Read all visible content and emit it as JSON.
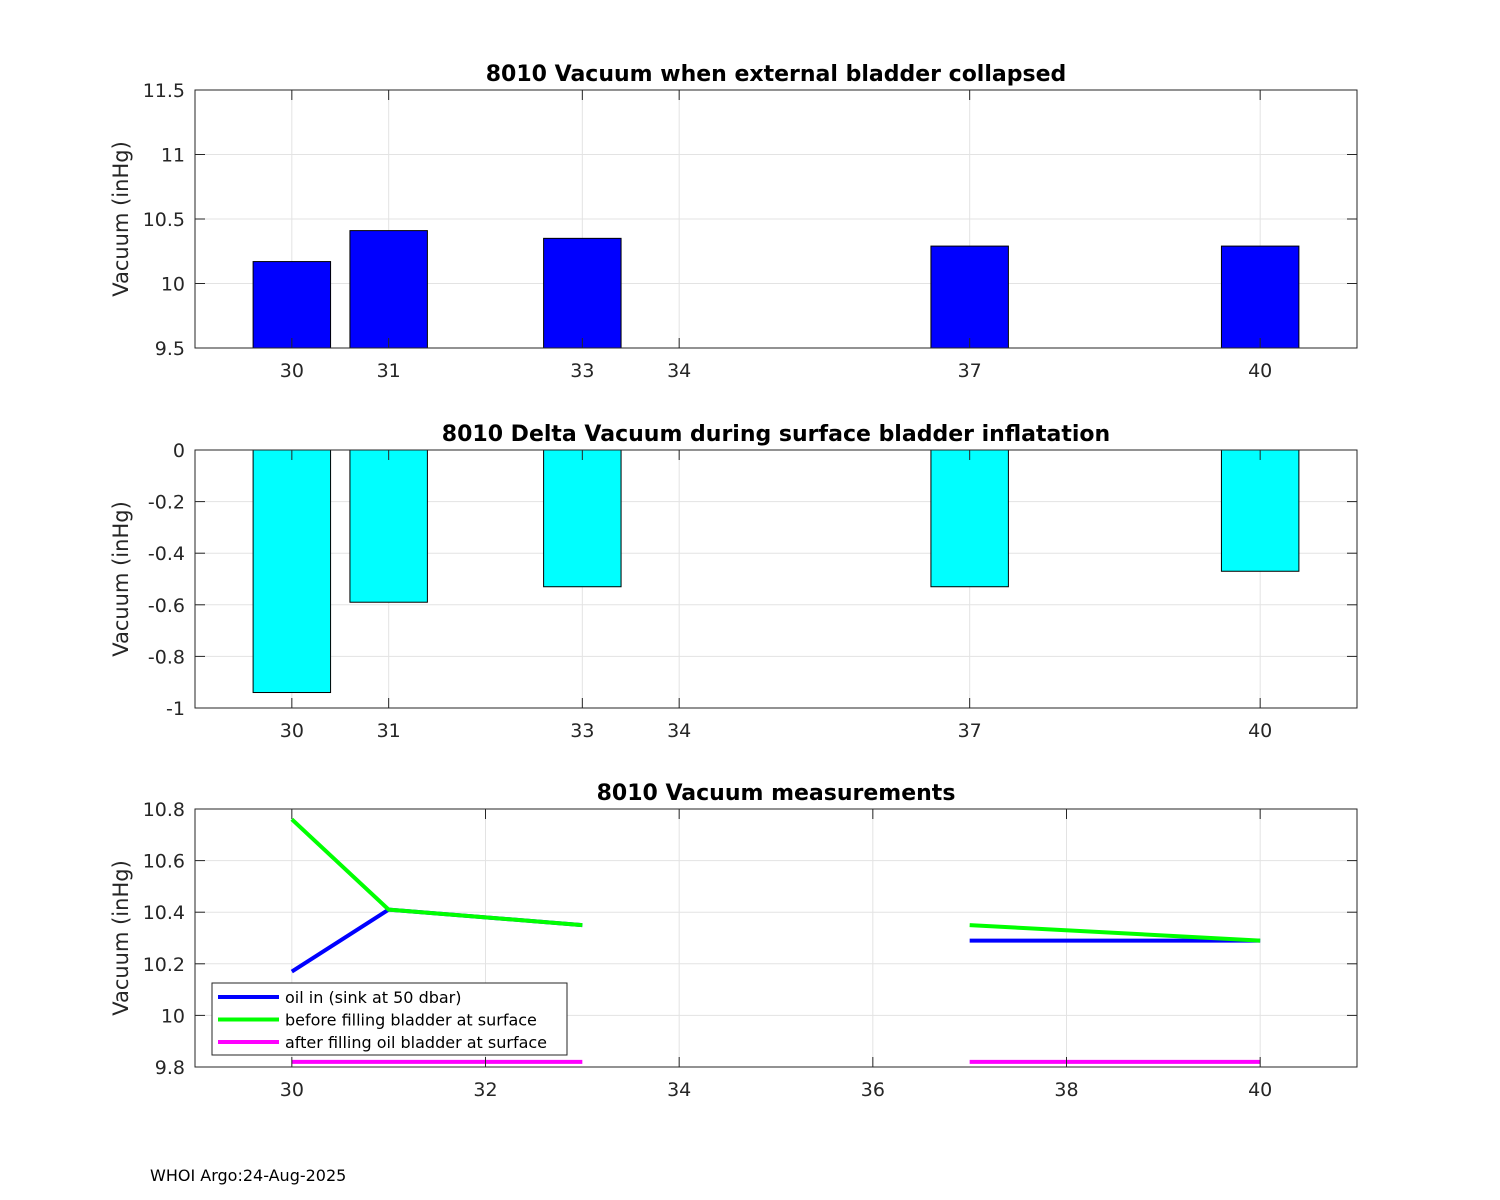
{
  "footer": "WHOI Argo:24-Aug-2025",
  "chart_data": [
    {
      "type": "bar",
      "title": "8010 Vacuum when external bladder collapsed",
      "ylabel": "Vacuum (inHg)",
      "xlabel": "",
      "xlim": [
        29,
        41
      ],
      "ylim": [
        9.5,
        11.5
      ],
      "xticks": [
        30,
        31,
        33,
        34,
        37,
        40
      ],
      "yticks": [
        9.5,
        10,
        10.5,
        11,
        11.5
      ],
      "ytick_labels": [
        "9.5",
        "10",
        "10.5",
        "11",
        "11.5"
      ],
      "bar_base": 9.5,
      "bar_width": 0.8,
      "color": "#0000ff",
      "x": [
        30,
        31,
        33,
        37,
        40
      ],
      "values": [
        10.17,
        10.41,
        10.35,
        10.29,
        10.29
      ],
      "grid": true
    },
    {
      "type": "bar",
      "title": "8010 Delta Vacuum during surface bladder inflatation",
      "ylabel": "Vacuum (inHg)",
      "xlabel": "",
      "xlim": [
        29,
        41
      ],
      "ylim": [
        -1,
        0
      ],
      "xticks": [
        30,
        31,
        33,
        34,
        37,
        40
      ],
      "yticks": [
        -1,
        -0.8,
        -0.6,
        -0.4,
        -0.2,
        0
      ],
      "ytick_labels": [
        "-1",
        "-0.8",
        "-0.6",
        "-0.4",
        "-0.2",
        "0"
      ],
      "bar_base": 0,
      "bar_width": 0.8,
      "color": "#00ffff",
      "x": [
        30,
        31,
        33,
        37,
        40
      ],
      "values": [
        -0.94,
        -0.59,
        -0.53,
        -0.53,
        -0.47
      ],
      "grid": true
    },
    {
      "type": "line",
      "title": "8010 Vacuum measurements",
      "ylabel": "Vacuum (inHg)",
      "xlabel": "",
      "xlim": [
        29,
        41
      ],
      "ylim": [
        9.8,
        10.8
      ],
      "xticks": [
        30,
        32,
        34,
        36,
        38,
        40
      ],
      "yticks": [
        9.8,
        10,
        10.2,
        10.4,
        10.6,
        10.8
      ],
      "ytick_labels": [
        "9.8",
        "10",
        "10.2",
        "10.4",
        "10.6",
        "10.8"
      ],
      "grid": true,
      "legend_position": "bottom-left",
      "series": [
        {
          "name": "oil in (sink at 50 dbar)",
          "color": "#0000ff",
          "segments": [
            {
              "x": [
                30,
                31,
                33
              ],
              "y": [
                10.17,
                10.41,
                10.35
              ]
            },
            {
              "x": [
                37,
                40
              ],
              "y": [
                10.29,
                10.29
              ]
            }
          ]
        },
        {
          "name": "before filling bladder at surface",
          "color": "#00ff00",
          "segments": [
            {
              "x": [
                30,
                31,
                33
              ],
              "y": [
                10.76,
                10.41,
                10.35
              ]
            },
            {
              "x": [
                37,
                40
              ],
              "y": [
                10.35,
                10.29
              ]
            }
          ]
        },
        {
          "name": "after filling oil bladder at surface",
          "color": "#ff00ff",
          "segments": [
            {
              "x": [
                30,
                31,
                33
              ],
              "y": [
                9.82,
                9.82,
                9.82
              ]
            },
            {
              "x": [
                37,
                40
              ],
              "y": [
                9.82,
                9.82
              ]
            }
          ]
        }
      ]
    }
  ]
}
